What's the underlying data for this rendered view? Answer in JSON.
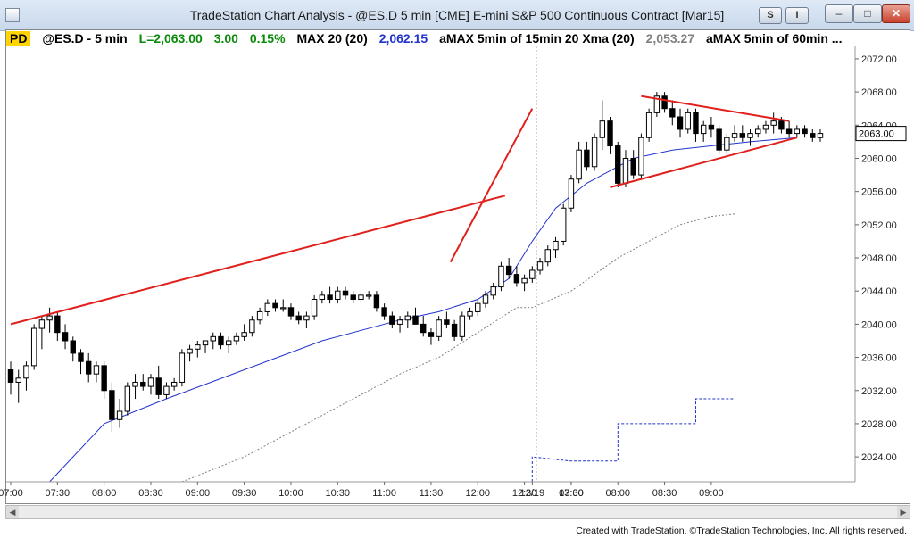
{
  "window": {
    "title": "TradeStation Chart Analysis - @ES.D 5 min [CME] E-mini S&P 500 Continuous Contract [Mar15]",
    "btn_s": "S",
    "btn_i": "I",
    "minimize": "–",
    "maximize": "□",
    "close": "✕"
  },
  "info": {
    "badge": "PD",
    "symbol": "@ES.D - 5 min",
    "last": "L=2,063.00",
    "change": "3.00",
    "pct": "0.15%",
    "ma1_name": "MAX 20 (20)",
    "ma1_value": "2,062.15",
    "ma2_name": "aMAX 5min of 15min 20 Xma (20)",
    "ma2_value": "2,053.27",
    "ma3_name": "aMAX 5min of 60min ..."
  },
  "colors": {
    "up_candle": "#ffffff",
    "down_candle": "#000000",
    "trendline": "#e0201c",
    "ma_line": "#2233cc",
    "dotted_gray": "#808080",
    "dotted_blue": "#2233cc",
    "badge": "#ffd400"
  },
  "chart_data": {
    "type": "candlestick",
    "symbol": "@ES.D",
    "interval": "5 min",
    "current_price_label": "2063.00",
    "y_ticks": [
      "2024.00",
      "2028.00",
      "2032.00",
      "2036.00",
      "2040.00",
      "2044.00",
      "2048.00",
      "2052.00",
      "2056.00",
      "2060.00",
      "2064.00",
      "2068.00",
      "2072.00"
    ],
    "x_ticks": [
      "07:00",
      "07:30",
      "08:00",
      "08:30",
      "09:00",
      "09:30",
      "10:00",
      "10:30",
      "11:00",
      "11:30",
      "12:00",
      "12:30",
      "13:00",
      "12/19",
      "07:30",
      "08:00",
      "08:30",
      "09:00"
    ],
    "ylim": [
      2021,
      2073.5
    ],
    "candles": [
      [
        2034.5,
        2035.5,
        2031.5,
        2033
      ],
      [
        2033,
        2034.5,
        2030.5,
        2033.5
      ],
      [
        2033.5,
        2035.5,
        2032,
        2035
      ],
      [
        2035,
        2040,
        2034.5,
        2039.5
      ],
      [
        2039.5,
        2041,
        2037,
        2040.5
      ],
      [
        2040.5,
        2042,
        2039,
        2041
      ],
      [
        2041,
        2041.5,
        2038,
        2039
      ],
      [
        2039,
        2040,
        2037,
        2038
      ],
      [
        2038,
        2038.5,
        2035.5,
        2036.5
      ],
      [
        2036.5,
        2037,
        2034,
        2035.5
      ],
      [
        2035.5,
        2036.5,
        2033,
        2034
      ],
      [
        2034,
        2035.5,
        2033,
        2035
      ],
      [
        2035,
        2035.5,
        2031,
        2032
      ],
      [
        2032,
        2033,
        2027,
        2028.5
      ],
      [
        2028.5,
        2031,
        2027.5,
        2029.5
      ],
      [
        2029.5,
        2033,
        2029,
        2032.5
      ],
      [
        2032.5,
        2034,
        2031,
        2033
      ],
      [
        2033,
        2034,
        2032,
        2032.5
      ],
      [
        2032.5,
        2034,
        2031.5,
        2033.5
      ],
      [
        2033.5,
        2035,
        2031,
        2031.5
      ],
      [
        2031.5,
        2033,
        2031,
        2032.5
      ],
      [
        2032.5,
        2033.5,
        2032,
        2033
      ],
      [
        2033,
        2037,
        2032.5,
        2036.5
      ],
      [
        2036.5,
        2037.5,
        2035.5,
        2037
      ],
      [
        2037,
        2038,
        2036,
        2037.5
      ],
      [
        2037.5,
        2038,
        2036.5,
        2038
      ],
      [
        2038,
        2039,
        2037,
        2038.5
      ],
      [
        2038.5,
        2039,
        2037,
        2037.5
      ],
      [
        2037.5,
        2038.5,
        2036.5,
        2038
      ],
      [
        2038,
        2039,
        2037.5,
        2038.5
      ],
      [
        2038.5,
        2040,
        2038,
        2039
      ],
      [
        2039,
        2041,
        2038.5,
        2040.5
      ],
      [
        2040.5,
        2042,
        2040,
        2041.5
      ],
      [
        2041.5,
        2043,
        2041,
        2042.5
      ],
      [
        2042.5,
        2043,
        2041.5,
        2042
      ],
      [
        2042,
        2043,
        2041.5,
        2042
      ],
      [
        2042,
        2042.5,
        2040.5,
        2041
      ],
      [
        2041,
        2041.5,
        2040,
        2040.5
      ],
      [
        2040.5,
        2041.5,
        2039.5,
        2041
      ],
      [
        2041,
        2043.5,
        2040.5,
        2043
      ],
      [
        2043,
        2044,
        2042.5,
        2043.5
      ],
      [
        2043.5,
        2044.5,
        2042.5,
        2043
      ],
      [
        2043,
        2044.5,
        2042.5,
        2044
      ],
      [
        2044,
        2044.5,
        2043,
        2043.5
      ],
      [
        2043.5,
        2044,
        2042.5,
        2043
      ],
      [
        2043,
        2044,
        2042.5,
        2043.5
      ],
      [
        2043.5,
        2044,
        2043,
        2043.5
      ],
      [
        2043.5,
        2044,
        2041.5,
        2042
      ],
      [
        2042,
        2042.5,
        2040.5,
        2041
      ],
      [
        2041,
        2041.5,
        2039.5,
        2040
      ],
      [
        2040,
        2041,
        2039,
        2040.5
      ],
      [
        2040.5,
        2041.5,
        2039.5,
        2041
      ],
      [
        2041,
        2042,
        2040,
        2040
      ],
      [
        2040,
        2041,
        2038.5,
        2039
      ],
      [
        2039,
        2039.5,
        2037.5,
        2038.5
      ],
      [
        2038.5,
        2041,
        2038,
        2040.5
      ],
      [
        2040.5,
        2041.5,
        2039.5,
        2040
      ],
      [
        2040,
        2040.5,
        2038,
        2038.5
      ],
      [
        2038.5,
        2041.5,
        2038,
        2041
      ],
      [
        2041,
        2042,
        2040.5,
        2041.5
      ],
      [
        2041.5,
        2043,
        2041,
        2042.5
      ],
      [
        2042.5,
        2044,
        2042,
        2043.5
      ],
      [
        2043.5,
        2045,
        2043,
        2044.5
      ],
      [
        2044.5,
        2047.5,
        2044,
        2047
      ],
      [
        2047,
        2048,
        2045.5,
        2046
      ],
      [
        2046,
        2047,
        2044.5,
        2045
      ],
      [
        2045,
        2046,
        2044,
        2045.5
      ],
      [
        2045.5,
        2047,
        2045,
        2046.5
      ],
      [
        2046.5,
        2048,
        2046,
        2047.5
      ],
      [
        2047.5,
        2049.5,
        2047,
        2049
      ],
      [
        2049,
        2050.5,
        2048,
        2050
      ],
      [
        2050,
        2054.5,
        2049.5,
        2054
      ],
      [
        2054,
        2058,
        2053.5,
        2057.5
      ],
      [
        2057.5,
        2062,
        2057,
        2061
      ],
      [
        2061,
        2062,
        2058.5,
        2059
      ],
      [
        2059,
        2063,
        2058.5,
        2062.5
      ],
      [
        2062.5,
        2067,
        2061,
        2064.5
      ],
      [
        2064.5,
        2065,
        2060.5,
        2061.5
      ],
      [
        2061.5,
        2062,
        2056.5,
        2057
      ],
      [
        2057,
        2061,
        2056.5,
        2060
      ],
      [
        2060,
        2061,
        2057.5,
        2058
      ],
      [
        2058,
        2063,
        2057.5,
        2062.5
      ],
      [
        2062.5,
        2066,
        2062,
        2065.5
      ],
      [
        2065.5,
        2068,
        2065,
        2067.5
      ],
      [
        2067.5,
        2068,
        2065.5,
        2066
      ],
      [
        2066,
        2067,
        2064,
        2065
      ],
      [
        2065,
        2066,
        2062.5,
        2063.5
      ],
      [
        2063.5,
        2066,
        2063,
        2065.5
      ],
      [
        2065.5,
        2066,
        2062,
        2063
      ],
      [
        2063,
        2064.5,
        2062,
        2064
      ],
      [
        2064,
        2065,
        2062.5,
        2063.5
      ],
      [
        2063.5,
        2064,
        2060.5,
        2061
      ],
      [
        2061,
        2063,
        2060.5,
        2062.5
      ],
      [
        2062.5,
        2064,
        2062,
        2063
      ],
      [
        2063,
        2064,
        2062,
        2062.5
      ],
      [
        2062.5,
        2063.5,
        2061.5,
        2063
      ],
      [
        2063,
        2064,
        2062.5,
        2063.5
      ],
      [
        2063.5,
        2064.5,
        2063,
        2064
      ],
      [
        2064,
        2065.5,
        2063,
        2064.5
      ],
      [
        2064.5,
        2065,
        2063,
        2063.5
      ],
      [
        2063.5,
        2064.5,
        2062.5,
        2063
      ],
      [
        2063,
        2064,
        2062.5,
        2063.5
      ],
      [
        2063.5,
        2064,
        2062.5,
        2063
      ],
      [
        2063,
        2063.5,
        2062,
        2062.5
      ],
      [
        2062.5,
        2063.5,
        2062,
        2063
      ]
    ],
    "trendlines": [
      {
        "x1": 0,
        "y1": 2040,
        "x2": 63.5,
        "y2": 2055.5
      },
      {
        "x1": 56.5,
        "y1": 2047.5,
        "x2": 67,
        "y2": 2066
      },
      {
        "x1": 77,
        "y1": 2056.5,
        "x2": 101,
        "y2": 2062.5
      },
      {
        "x1": 81,
        "y1": 2067.5,
        "x2": 100,
        "y2": 2064.5
      }
    ],
    "session_divider_index": 67,
    "ma_line": [
      [
        5,
        2021
      ],
      [
        12,
        2028
      ],
      [
        20,
        2031
      ],
      [
        30,
        2034.5
      ],
      [
        40,
        2038
      ],
      [
        50,
        2040.5
      ],
      [
        55,
        2041.5
      ],
      [
        60,
        2043
      ],
      [
        64,
        2045.5
      ],
      [
        67,
        2050
      ],
      [
        70,
        2054
      ],
      [
        74,
        2057
      ],
      [
        77,
        2058.5
      ],
      [
        80,
        2060
      ],
      [
        85,
        2061
      ],
      [
        90,
        2061.5
      ],
      [
        95,
        2062
      ],
      [
        101,
        2062.5
      ]
    ],
    "dotted_gray": [
      [
        22,
        2021
      ],
      [
        30,
        2024
      ],
      [
        40,
        2029
      ],
      [
        50,
        2034
      ],
      [
        55,
        2036
      ],
      [
        60,
        2039
      ],
      [
        65,
        2042
      ],
      [
        67,
        2042
      ],
      [
        72,
        2044
      ],
      [
        78,
        2048
      ],
      [
        82,
        2050
      ],
      [
        86,
        2052
      ],
      [
        88,
        2052.5
      ],
      [
        90,
        2053
      ],
      [
        93,
        2053.3
      ]
    ],
    "dotted_blue": [
      [
        67,
        2021
      ],
      [
        67,
        2024
      ],
      [
        72,
        2023.5
      ],
      [
        78,
        2023.5
      ],
      [
        78,
        2028
      ],
      [
        83,
        2028
      ],
      [
        88,
        2028
      ],
      [
        88,
        2031
      ],
      [
        93,
        2031
      ]
    ]
  },
  "footer": {
    "text": "Created with TradeStation. ©TradeStation Technologies, Inc. All rights reserved."
  }
}
